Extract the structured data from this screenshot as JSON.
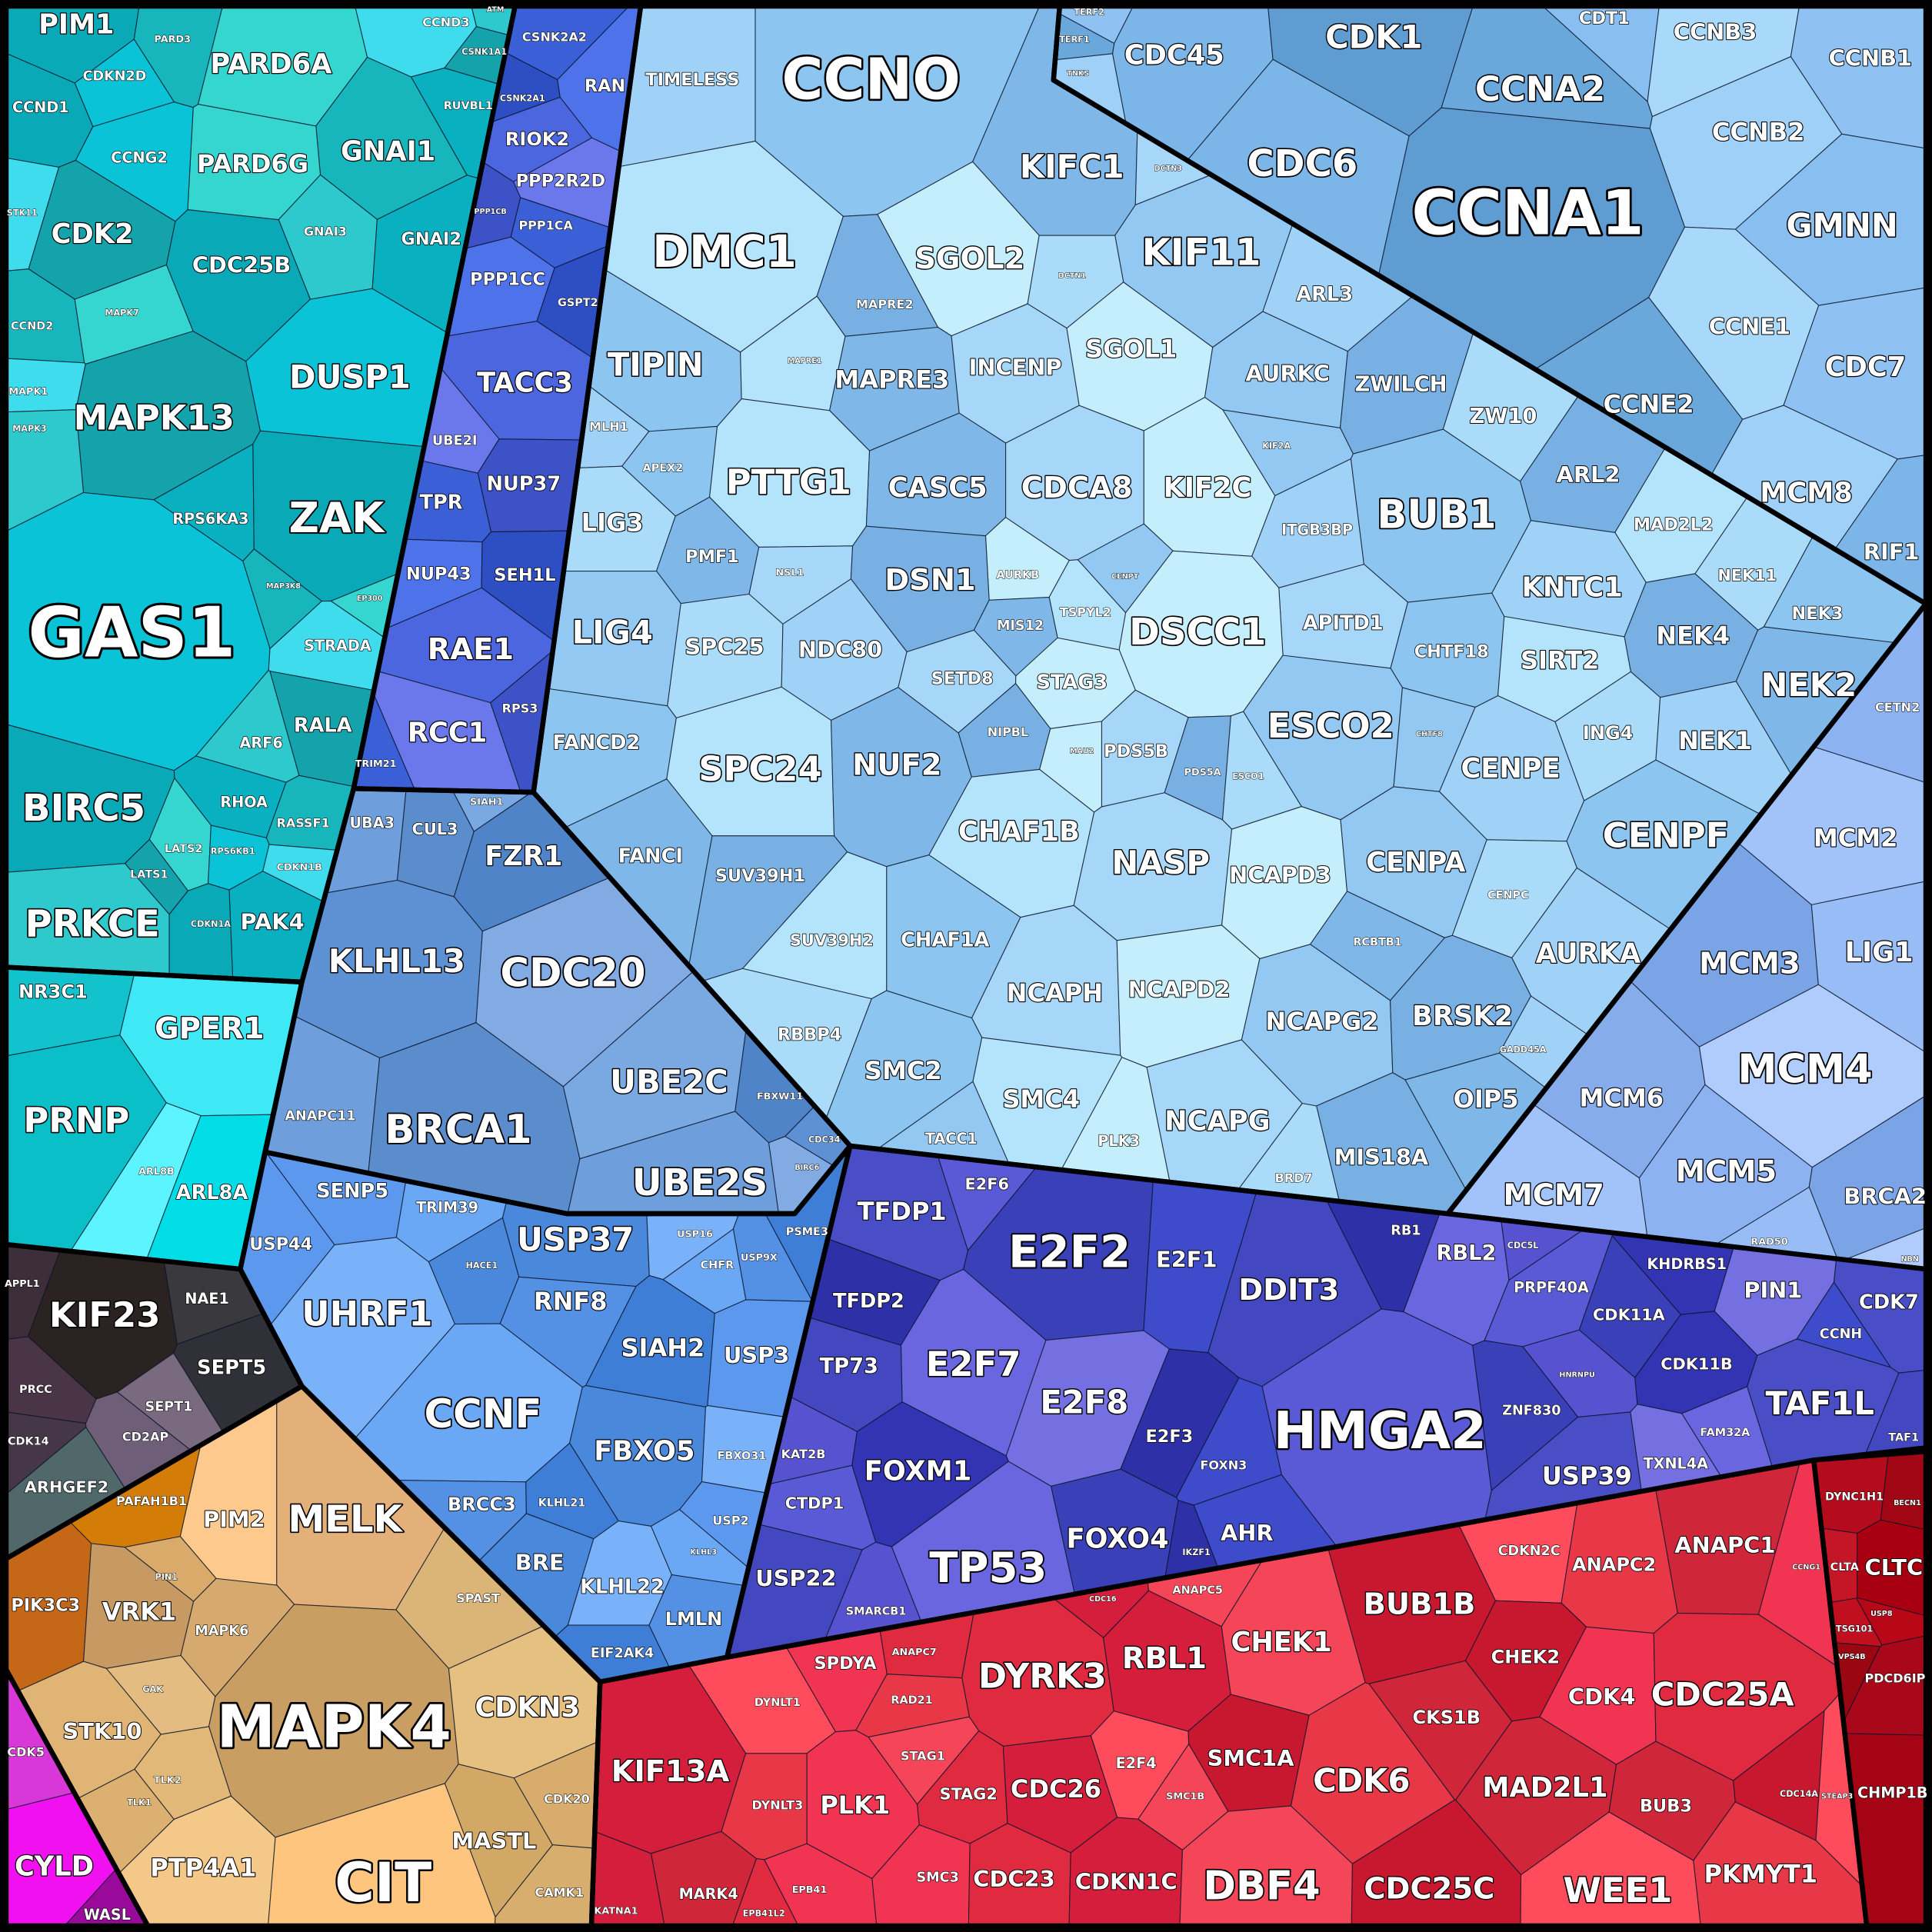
{
  "groups": [
    {
      "cells": [
        "PIM1",
        "PARD3",
        "PARD6A",
        "CDKN2D",
        "CCND3",
        "CSNK1A1",
        "ATM",
        "RUVBL1",
        "CCND1",
        "GNAI1",
        "PARD6G",
        "CCNG2",
        "STK11",
        "CDK2",
        "GNAI3",
        "GNAI2",
        "CDC25B",
        "CCND2",
        "MAPK7",
        "DUSP1",
        "MAPK1",
        "MAPK13",
        "MAPK3",
        "RPS6KA3",
        "ZAK",
        "MAP3K8",
        "EP300",
        "GAS1",
        "STRADA",
        "RALA",
        "ARF6",
        "RHOA",
        "BIRC5",
        "RASSF1",
        "LATS2",
        "RPS6KB1",
        "CDKN1B",
        "LATS1",
        "PRKCE",
        "PAK4",
        "CDKN1A"
      ],
      "colors": [
        "#0aa9b8",
        "#17b6bd",
        "#35d6d0",
        "#0bc3d6",
        "#3fdcee",
        "#14a3ab",
        "#2ec9cc",
        "#08b0c0"
      ]
    },
    {
      "cells": [
        "NR3C1",
        "GPER1",
        "PRNP",
        "ARL8B",
        "ARL8A"
      ],
      "colors": [
        "#12c2cc",
        "#3ee8f5",
        "#0abfc8",
        "#5cf5ff",
        "#00dde6"
      ]
    },
    {
      "cells": [
        "APPL1",
        "KIF23",
        "NAE1",
        "SEPT5",
        "PRCC",
        "SEPT1",
        "CDK14",
        "CD2AP",
        "ARHGEF2"
      ],
      "colors": [
        "#3d2f3a",
        "#2a2322",
        "#3a3a3e",
        "#303038",
        "#4a3546",
        "#7a6a80",
        "#453648",
        "#6e5e78",
        "#50686a"
      ]
    },
    {
      "cells": [
        "PAFAH1B1",
        "PIK3C3",
        "PIM2",
        "MELK",
        "PIN1",
        "VRK1",
        "MAPK6",
        "SPAST",
        "GAK",
        "STK10",
        "MAPK4",
        "CDKN3",
        "TLK2",
        "TLK1",
        "CDK20",
        "MASTL",
        "PTP4A1",
        "CIT",
        "CAMK1"
      ],
      "colors": [
        "#d47c08",
        "#c46818",
        "#fdc98c",
        "#e2b078",
        "#d9aa6a",
        "#c69a62",
        "#d6aa6e",
        "#dbb478",
        "#e4bb80",
        "#e0b474",
        "#c99e62",
        "#e6c080",
        "#e2b878",
        "#dcb070",
        "#d8ac6c",
        "#d2a866",
        "#f3c888",
        "#fec57f",
        "#d8ae6e"
      ]
    },
    {
      "cells": [
        "CDK5",
        "CYLD",
        "WASL"
      ],
      "colors": [
        "#d838d8",
        "#f010f0",
        "#9a0a9a"
      ]
    },
    {
      "cells": [
        "CSNK2A2",
        "RAN",
        "CSNK2A1",
        "RIOK2",
        "PPP2R2D",
        "PPP1CB",
        "PPP1CA",
        "PPP1CC",
        "GSPT2",
        "TACC3",
        "UBE2I",
        "NUP37",
        "TPR",
        "NUP43",
        "SEH1L",
        "RAE1",
        "RCC1",
        "RPS3",
        "TRIM21"
      ],
      "colors": [
        "#3a5fd6",
        "#4e72ea",
        "#2e4fc4",
        "#4c66e0",
        "#6a78ec",
        "#3d52c6"
      ]
    },
    {
      "cells": [
        "UBA3",
        "CUL3",
        "SIAH1",
        "FZR1",
        "KLHL13",
        "CDC20",
        "ANAPC11",
        "BRCA1",
        "UBE2C",
        "FBXW11",
        "CDC34",
        "BIRC6",
        "UBE2S"
      ],
      "colors": [
        "#6e9fdc",
        "#5b8ccc",
        "#7aa8e0",
        "#4f84c8",
        "#5e90d4",
        "#82abe4"
      ]
    },
    {
      "cells": [
        "SENP5",
        "TRIM39",
        "USP37",
        "USP16",
        "USP9X",
        "PSME3",
        "USP44",
        "CHFR",
        "HACE1",
        "UHRF1",
        "RNF8",
        "SIAH2",
        "USP3",
        "CCNF",
        "FBXO5",
        "FBXO31",
        "BRCC3",
        "KLHL21",
        "USP2",
        "KLHL3",
        "BRE",
        "KLHL22",
        "LMLN",
        "EIF2AK4"
      ],
      "colors": [
        "#5c98ee",
        "#6aa8f6",
        "#4a88dc",
        "#7ab2fa",
        "#5490e4",
        "#3f7ed6"
      ]
    },
    {
      "cells": [
        "TERF2",
        "TERF1",
        "TNKS",
        "CDC45",
        "CDK1",
        "CDT1",
        "CCNB3",
        "CCNB1",
        "CCNA2",
        "CCNB2",
        "CDC6",
        "CCNA1",
        "GMNN",
        "CCNE1",
        "CDC7",
        "CCNE2",
        "MCM8",
        "RIF1"
      ],
      "colors": [
        "#8fc2f2",
        "#6aa8dc",
        "#9ed0f8",
        "#7cb6e8",
        "#5e9cd2",
        "#88bef0",
        "#a8d8fa"
      ]
    },
    {
      "cells": [
        "CETN2",
        "MCM2",
        "MCM3",
        "LIG1",
        "MCM4",
        "MCM6",
        "MCM5",
        "MCM7",
        "BRCA2",
        "RAD50",
        "NBN"
      ],
      "colors": [
        "#8cb2f2",
        "#a2c2fa",
        "#7aa4e6",
        "#98bcf6",
        "#b0ccfc",
        "#86acec"
      ]
    },
    {
      "cells": [
        "TIMELESS",
        "CCNO",
        "DMC1",
        "KIFC1",
        "DCTN3",
        "SGOL2",
        "KIF11",
        "MAPRE2",
        "DCTN1",
        "ARL3",
        "TIPIN",
        "MAPRE1",
        "MAPRE3",
        "INCENP",
        "SGOL1",
        "AURKC",
        "ZWILCH",
        "ZW10",
        "MLH1",
        "APEX2",
        "PTTG1",
        "CASC5",
        "CDCA8",
        "KIF2C",
        "KIF2A",
        "ARL2",
        "LIG3",
        "ITGB3BP",
        "BUB1",
        "MAD2L2",
        "PMF1",
        "NSL1",
        "AURKB",
        "CENPT",
        "DSN1",
        "NEK11",
        "KNTC1",
        "NEK3",
        "TSPYL2",
        "MIS12",
        "APITD1",
        "DSCC1",
        "LIG4",
        "NEK4",
        "SPC25",
        "NDC80",
        "CHTF18",
        "SIRT2",
        "NEK2",
        "SETD8",
        "STAG3",
        "ESCO2",
        "NIPBL",
        "ING4",
        "NEK1",
        "FANCD2",
        "SPC24",
        "NUF2",
        "PDS5B",
        "MAU2",
        "CHTF8",
        "PDS5A",
        "ESCO1",
        "CENPE",
        "CENPF",
        "CHAF1B",
        "FANCI",
        "NASP",
        "NCAPD3",
        "CENPA",
        "SUV39H1",
        "CENPC",
        "AURKA",
        "CHAF1A",
        "SUV39H2",
        "RCBTB1",
        "NCAPH",
        "NCAPD2",
        "NCAPG2",
        "BRSK2",
        "RBBP4",
        "GADD45A",
        "SMC2",
        "SMC4",
        "OIP5",
        "NCAPG",
        "PLK3",
        "TACC1",
        "MIS18A",
        "BRD7"
      ],
      "colors": [
        "#9fd2f6",
        "#8cc6f0",
        "#b4e4fc",
        "#7fb8e8",
        "#a6d6f8",
        "#c4eefc",
        "#92c8f2",
        "#78b0e4",
        "#aadcfa"
      ]
    },
    {
      "cells": [
        "TFDP1",
        "E2F6",
        "E2F2",
        "E2F1",
        "RB1",
        "RBL2",
        "DDIT3",
        "CDC5L",
        "KHDRBS1",
        "PIN1",
        "CDK7",
        "PRPF40A",
        "CDK11A",
        "CCNH",
        "TFDP2",
        "E2F7",
        "TP73",
        "HNRNPU",
        "CDK11B",
        "E2F8",
        "TAF1L",
        "HMGA2",
        "ZNF830",
        "FOXN3",
        "E2F3",
        "FAM32A",
        "TAF1",
        "KAT2B",
        "FOXM1",
        "TXNL4A",
        "USP39",
        "CTDP1",
        "FOXO4",
        "AHR",
        "IKZF1",
        "TP53",
        "USP22",
        "SMARCB1"
      ],
      "colors": [
        "#4a4ec6",
        "#5a5ad6",
        "#3a40b8",
        "#3e4ccc",
        "#2e30a8",
        "#6a66e0",
        "#4448c0",
        "#5652d0",
        "#3234b4",
        "#7470e2"
      ]
    },
    {
      "cells": [
        "SPDYA",
        "ANAPC7",
        "CDC16",
        "ANAPC5",
        "BUB1B",
        "CDKN2C",
        "ANAPC2",
        "ANAPC1",
        "CCNG1",
        "DYRK3",
        "RBL1",
        "CHEK1",
        "CHEK2",
        "DYNLT1",
        "RAD21",
        "CKS1B",
        "CDK4",
        "CDC25A",
        "KIF13A",
        "STAG1",
        "SMC1A",
        "E2F4",
        "CDK6",
        "MAD2L1",
        "PLK1",
        "STAG2",
        "CDC26",
        "SMC1B",
        "CDC14A",
        "STEAP3",
        "DYNLT3",
        "BUB3",
        "SMC3",
        "CDC23",
        "CDKN1C",
        "DBF4",
        "CDC25C",
        "WEE1",
        "PKMYT1",
        "MARK4",
        "EPB41",
        "EPB41L2",
        "KATNA1"
      ],
      "colors": [
        "#f03452",
        "#e02a40",
        "#d41e3c",
        "#f44658",
        "#c81830",
        "#ff4c5c",
        "#e83848",
        "#d0263a"
      ]
    },
    {
      "cells": [
        "DYNC1H1",
        "BECN1",
        "CLTA",
        "CLTC",
        "USP8",
        "TSG101",
        "VPS4B",
        "PDCD6IP",
        "CHMP1B"
      ],
      "colors": [
        "#b40c1c",
        "#a00614",
        "#c41626",
        "#a80010",
        "#b80818",
        "#c01020",
        "#9a0612",
        "#a8081a",
        "#a40414"
      ]
    }
  ]
}
